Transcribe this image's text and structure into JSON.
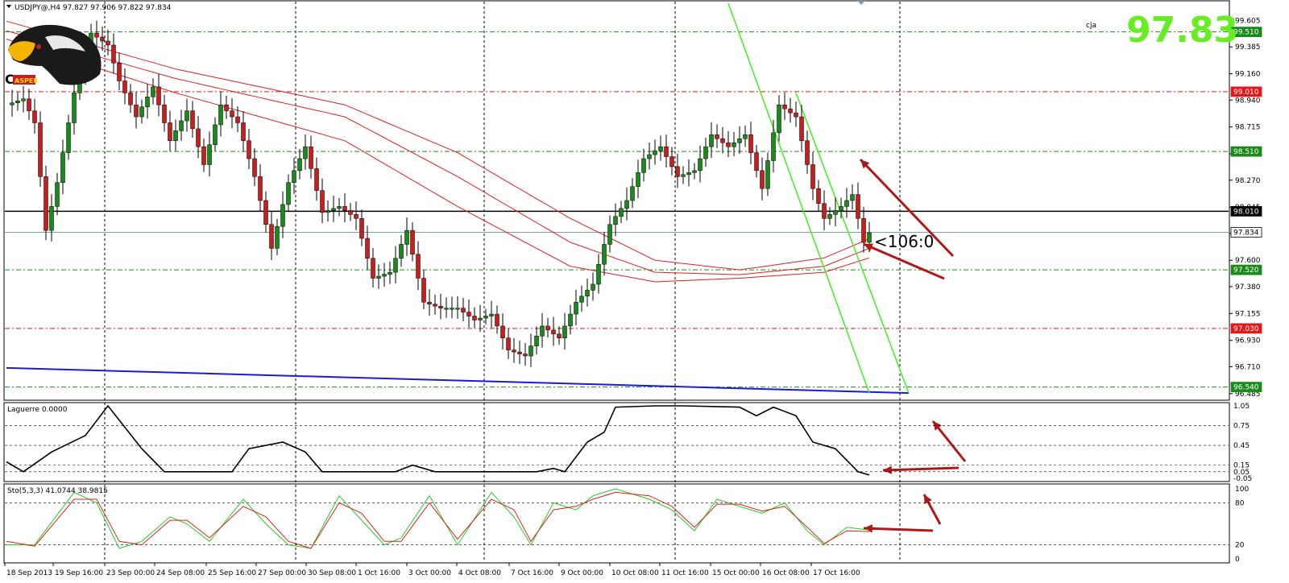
{
  "header": {
    "title": "USDJPY@,H4",
    "ohlc": "97.827 97.906 97.822 97.834",
    "corner_label": "cja",
    "current_price_big": "97.83",
    "logo_text": "ASPER",
    "logo_letter": "C"
  },
  "annotation": "<106:0",
  "colors": {
    "bull_candle": "#1a8a1a",
    "bear_candle": "#c81e1e",
    "ma_lines": "#e02020",
    "channel": "#44ee22",
    "trend_line": "#1a1adc",
    "green_level": "#1a8a1a",
    "red_level": "#e01a1a",
    "arrow": "#b01818",
    "laguerre_line": "#000000",
    "stoch_main": "#22cc22",
    "stoch_signal": "#e02020"
  },
  "chart_data": [
    {
      "type": "candlestick",
      "name": "price",
      "symbol": "USDJPY@",
      "timeframe": "H4",
      "ylim": [
        96.45,
        99.75
      ],
      "y_ticks": [
        "99.605",
        "99.385",
        "99.160",
        "98.940",
        "98.715",
        "98.490",
        "98.270",
        "98.045",
        "97.825",
        "97.600",
        "97.380",
        "97.155",
        "96.930",
        "96.710",
        "96.485"
      ],
      "x_ticks": [
        "18 Sep 2013",
        "19 Sep 16:00",
        "23 Sep 00:00",
        "24 Sep 08:00",
        "25 Sep 16:00",
        "27 Sep 00:00",
        "30 Sep 08:00",
        "1 Oct 16:00",
        "3 Oct 00:00",
        "4 Oct 08:00",
        "7 Oct 16:00",
        "9 Oct 00:00",
        "10 Oct 08:00",
        "11 Oct 16:00",
        "15 Oct 00:00",
        "16 Oct 08:00",
        "17 Oct 16:00"
      ],
      "levels": [
        {
          "label": "99.510",
          "value": 99.51,
          "color": "green"
        },
        {
          "label": "99.010",
          "value": 99.01,
          "color": "red"
        },
        {
          "label": "98.510",
          "value": 98.51,
          "color": "green"
        },
        {
          "label": "98.010",
          "value": 98.01,
          "color": "black"
        },
        {
          "label": "97.834",
          "value": 97.834,
          "color": "current"
        },
        {
          "label": "97.520",
          "value": 97.52,
          "color": "green"
        },
        {
          "label": "97.030",
          "value": 97.03,
          "color": "red"
        },
        {
          "label": "96.540",
          "value": 96.54,
          "color": "green"
        }
      ],
      "anchors": [
        [
          0,
          98.9
        ],
        [
          3,
          98.95
        ],
        [
          5,
          98.75
        ],
        [
          7,
          97.85
        ],
        [
          9,
          98.25
        ],
        [
          12,
          99.0
        ],
        [
          15,
          99.5
        ],
        [
          18,
          99.4
        ],
        [
          20,
          99.1
        ],
        [
          23,
          98.8
        ],
        [
          26,
          99.05
        ],
        [
          29,
          98.6
        ],
        [
          32,
          98.85
        ],
        [
          35,
          98.4
        ],
        [
          38,
          98.9
        ],
        [
          41,
          98.75
        ],
        [
          44,
          98.3
        ],
        [
          47,
          97.7
        ],
        [
          50,
          98.25
        ],
        [
          53,
          98.55
        ],
        [
          56,
          98.0
        ],
        [
          59,
          98.05
        ],
        [
          62,
          97.95
        ],
        [
          65,
          97.45
        ],
        [
          68,
          97.5
        ],
        [
          71,
          97.85
        ],
        [
          74,
          97.25
        ],
        [
          77,
          97.2
        ],
        [
          80,
          97.2
        ],
        [
          83,
          97.1
        ],
        [
          86,
          97.15
        ],
        [
          89,
          96.85
        ],
        [
          92,
          96.8
        ],
        [
          95,
          97.05
        ],
        [
          98,
          96.95
        ],
        [
          101,
          97.25
        ],
        [
          104,
          97.4
        ],
        [
          107,
          97.9
        ],
        [
          110,
          98.1
        ],
        [
          113,
          98.45
        ],
        [
          116,
          98.55
        ],
        [
          119,
          98.3
        ],
        [
          122,
          98.35
        ],
        [
          125,
          98.65
        ],
        [
          128,
          98.55
        ],
        [
          131,
          98.65
        ],
        [
          134,
          98.2
        ],
        [
          137,
          98.9
        ],
        [
          140,
          98.8
        ],
        [
          143,
          98.2
        ],
        [
          145,
          97.95
        ],
        [
          148,
          98.05
        ],
        [
          150,
          98.15
        ],
        [
          152,
          97.75
        ],
        [
          153,
          97.83
        ]
      ],
      "moving_averages": [
        {
          "name": "ma_1",
          "points": [
            [
              0,
              99.6
            ],
            [
              30,
              99.2
            ],
            [
              60,
              98.9
            ],
            [
              80,
              98.5
            ],
            [
              100,
              97.95
            ],
            [
              115,
              97.6
            ],
            [
              130,
              97.52
            ],
            [
              145,
              97.62
            ],
            [
              153,
              97.78
            ]
          ]
        },
        {
          "name": "ma_2",
          "points": [
            [
              0,
              99.52
            ],
            [
              30,
              99.12
            ],
            [
              60,
              98.8
            ],
            [
              80,
              98.3
            ],
            [
              100,
              97.75
            ],
            [
              115,
              97.5
            ],
            [
              130,
              97.48
            ],
            [
              145,
              97.55
            ],
            [
              153,
              97.7
            ]
          ]
        },
        {
          "name": "ma_3",
          "points": [
            [
              0,
              99.45
            ],
            [
              30,
              99.0
            ],
            [
              60,
              98.6
            ],
            [
              80,
              98.05
            ],
            [
              100,
              97.55
            ],
            [
              115,
              97.42
            ],
            [
              130,
              97.45
            ],
            [
              145,
              97.5
            ],
            [
              153,
              97.62
            ]
          ]
        }
      ],
      "trend_line": [
        [
          0,
          96.7
        ],
        [
          160,
          96.49
        ]
      ],
      "channel_lines": [
        [
          [
            128,
            99.75
          ],
          [
            153,
            96.49
          ]
        ],
        [
          [
            140,
            99.0
          ],
          [
            160,
            96.49
          ]
        ]
      ]
    },
    {
      "type": "line",
      "name": "Laguerre",
      "label": "Laguerre 0.0000",
      "y_ticks": [
        "1.05",
        "0.75",
        "0.45",
        "0.15",
        "0.05",
        "-0.05"
      ],
      "ylim": [
        -0.05,
        1.05
      ],
      "points": [
        [
          0,
          0.2
        ],
        [
          3,
          0.05
        ],
        [
          8,
          0.35
        ],
        [
          14,
          0.6
        ],
        [
          18,
          1.05
        ],
        [
          24,
          0.4
        ],
        [
          28,
          0.05
        ],
        [
          40,
          0.05
        ],
        [
          43,
          0.4
        ],
        [
          49,
          0.5
        ],
        [
          53,
          0.35
        ],
        [
          56,
          0.05
        ],
        [
          65,
          0.05
        ],
        [
          69,
          0.05
        ],
        [
          72,
          0.15
        ],
        [
          76,
          0.05
        ],
        [
          94,
          0.05
        ],
        [
          97,
          0.1
        ],
        [
          99,
          0.05
        ],
        [
          103,
          0.5
        ],
        [
          106,
          0.65
        ],
        [
          108,
          1.03
        ],
        [
          115,
          1.05
        ],
        [
          120,
          1.05
        ],
        [
          130,
          1.03
        ],
        [
          133,
          0.9
        ],
        [
          136,
          1.03
        ],
        [
          140,
          0.9
        ],
        [
          143,
          0.5
        ],
        [
          147,
          0.4
        ],
        [
          151,
          0.05
        ],
        [
          153,
          0.0
        ]
      ]
    },
    {
      "type": "line",
      "name": "Stochastic",
      "label": "Sto(5,3,3) 41.0744 38.9815",
      "y_ticks": [
        "100",
        "80",
        "20",
        "0"
      ],
      "ylim": [
        0,
        100
      ],
      "series": [
        {
          "name": "main",
          "points": [
            [
              0,
              20
            ],
            [
              5,
              20
            ],
            [
              12,
              95
            ],
            [
              16,
              80
            ],
            [
              20,
              15
            ],
            [
              24,
              25
            ],
            [
              29,
              60
            ],
            [
              32,
              50
            ],
            [
              36,
              25
            ],
            [
              42,
              85
            ],
            [
              46,
              50
            ],
            [
              50,
              20
            ],
            [
              54,
              15
            ],
            [
              59,
              90
            ],
            [
              63,
              55
            ],
            [
              67,
              20
            ],
            [
              70,
              30
            ],
            [
              75,
              90
            ],
            [
              80,
              20
            ],
            [
              86,
              95
            ],
            [
              90,
              60
            ],
            [
              93,
              20
            ],
            [
              97,
              80
            ],
            [
              101,
              70
            ],
            [
              104,
              90
            ],
            [
              108,
              100
            ],
            [
              114,
              85
            ],
            [
              118,
              70
            ],
            [
              122,
              40
            ],
            [
              126,
              85
            ],
            [
              130,
              75
            ],
            [
              134,
              65
            ],
            [
              138,
              80
            ],
            [
              142,
              40
            ],
            [
              145,
              20
            ],
            [
              149,
              45
            ],
            [
              153,
              41
            ]
          ]
        },
        {
          "name": "signal",
          "points": [
            [
              0,
              25
            ],
            [
              5,
              18
            ],
            [
              12,
              85
            ],
            [
              16,
              85
            ],
            [
              20,
              25
            ],
            [
              24,
              20
            ],
            [
              29,
              55
            ],
            [
              32,
              55
            ],
            [
              36,
              30
            ],
            [
              42,
              75
            ],
            [
              46,
              60
            ],
            [
              50,
              25
            ],
            [
              54,
              15
            ],
            [
              59,
              80
            ],
            [
              63,
              65
            ],
            [
              67,
              25
            ],
            [
              70,
              25
            ],
            [
              75,
              80
            ],
            [
              80,
              28
            ],
            [
              86,
              85
            ],
            [
              90,
              70
            ],
            [
              93,
              25
            ],
            [
              97,
              70
            ],
            [
              101,
              75
            ],
            [
              104,
              85
            ],
            [
              108,
              95
            ],
            [
              114,
              90
            ],
            [
              118,
              75
            ],
            [
              122,
              45
            ],
            [
              126,
              78
            ],
            [
              130,
              78
            ],
            [
              134,
              68
            ],
            [
              138,
              75
            ],
            [
              142,
              45
            ],
            [
              145,
              22
            ],
            [
              149,
              40
            ],
            [
              153,
              39
            ]
          ]
        }
      ]
    }
  ]
}
